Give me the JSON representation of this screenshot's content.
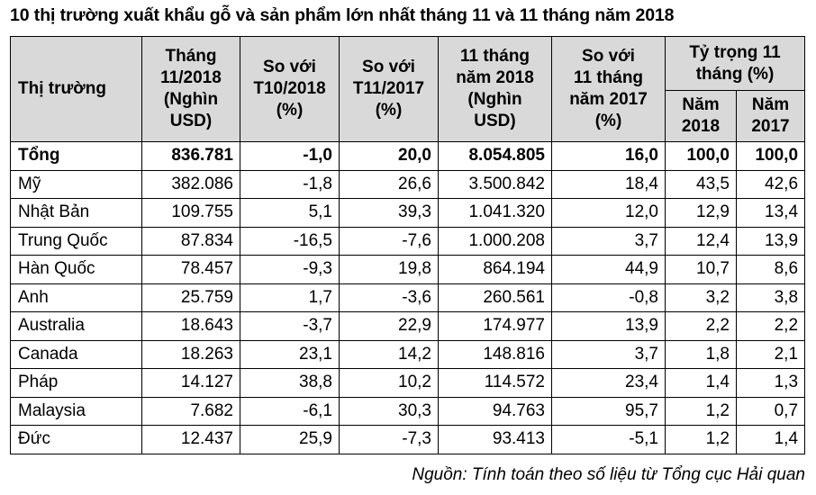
{
  "title": "10 thị trường xuất khẩu gỗ và sản phẩm lớn nhất tháng 11 và 11 tháng năm 2018",
  "headers": {
    "market": "Thị trường",
    "month_value_lines": [
      "Tháng",
      "11/2018",
      "(Nghìn",
      "USD)"
    ],
    "vs_t10_lines": [
      "So với",
      "T10/2018",
      "(%)"
    ],
    "vs_t11_lines": [
      "So với",
      "T11/2017",
      "(%)"
    ],
    "ytd_value_lines": [
      "11 tháng",
      "năm 2018",
      "(Nghìn",
      "USD)"
    ],
    "vs_ytd_lines": [
      "So với",
      "11 tháng",
      "năm 2017",
      "(%)"
    ],
    "share_lines": [
      "Tỷ trọng 11",
      "tháng (%)"
    ],
    "share_2018_lines": [
      "Năm",
      "2018"
    ],
    "share_2017_lines": [
      "Năm",
      "2017"
    ]
  },
  "rows": [
    {
      "market": "Tổng",
      "m11": "836.781",
      "vs_t10": "-1,0",
      "vs_t11": "20,0",
      "ytd": "8.054.805",
      "vs_ytd": "16,0",
      "s2018": "100,0",
      "s2017": "100,0"
    },
    {
      "market": "Mỹ",
      "m11": "382.086",
      "vs_t10": "-1,8",
      "vs_t11": "26,6",
      "ytd": "3.500.842",
      "vs_ytd": "18,4",
      "s2018": "43,5",
      "s2017": "42,6"
    },
    {
      "market": "Nhật Bản",
      "m11": "109.755",
      "vs_t10": "5,1",
      "vs_t11": "39,3",
      "ytd": "1.041.320",
      "vs_ytd": "12,0",
      "s2018": "12,9",
      "s2017": "13,4"
    },
    {
      "market": "Trung Quốc",
      "m11": "87.834",
      "vs_t10": "-16,5",
      "vs_t11": "-7,6",
      "ytd": "1.000.208",
      "vs_ytd": "3,7",
      "s2018": "12,4",
      "s2017": "13,9"
    },
    {
      "market": "Hàn Quốc",
      "m11": "78.457",
      "vs_t10": "-9,3",
      "vs_t11": "19,8",
      "ytd": "864.194",
      "vs_ytd": "44,9",
      "s2018": "10,7",
      "s2017": "8,6"
    },
    {
      "market": "Anh",
      "m11": "25.759",
      "vs_t10": "1,7",
      "vs_t11": "-3,6",
      "ytd": "260.561",
      "vs_ytd": "-0,8",
      "s2018": "3,2",
      "s2017": "3,8"
    },
    {
      "market": "Australia",
      "m11": "18.643",
      "vs_t10": "-3,7",
      "vs_t11": "22,9",
      "ytd": "174.977",
      "vs_ytd": "13,9",
      "s2018": "2,2",
      "s2017": "2,2"
    },
    {
      "market": "Canada",
      "m11": "18.263",
      "vs_t10": "23,1",
      "vs_t11": "14,2",
      "ytd": "148.816",
      "vs_ytd": "3,7",
      "s2018": "1,8",
      "s2017": "2,1"
    },
    {
      "market": "Pháp",
      "m11": "14.127",
      "vs_t10": "38,8",
      "vs_t11": "10,2",
      "ytd": "114.572",
      "vs_ytd": "23,4",
      "s2018": "1,4",
      "s2017": "1,3"
    },
    {
      "market": "Malaysia",
      "m11": "7.682",
      "vs_t10": "-6,1",
      "vs_t11": "30,3",
      "ytd": "94.763",
      "vs_ytd": "95,7",
      "s2018": "1,2",
      "s2017": "0,7"
    },
    {
      "market": "Đức",
      "m11": "12.437",
      "vs_t10": "25,9",
      "vs_t11": "-7,3",
      "ytd": "93.413",
      "vs_ytd": "-5,1",
      "s2018": "1,2",
      "s2017": "1,4"
    }
  ],
  "source": "Nguồn: Tính toán theo số liệu từ Tổng cục Hải quan"
}
